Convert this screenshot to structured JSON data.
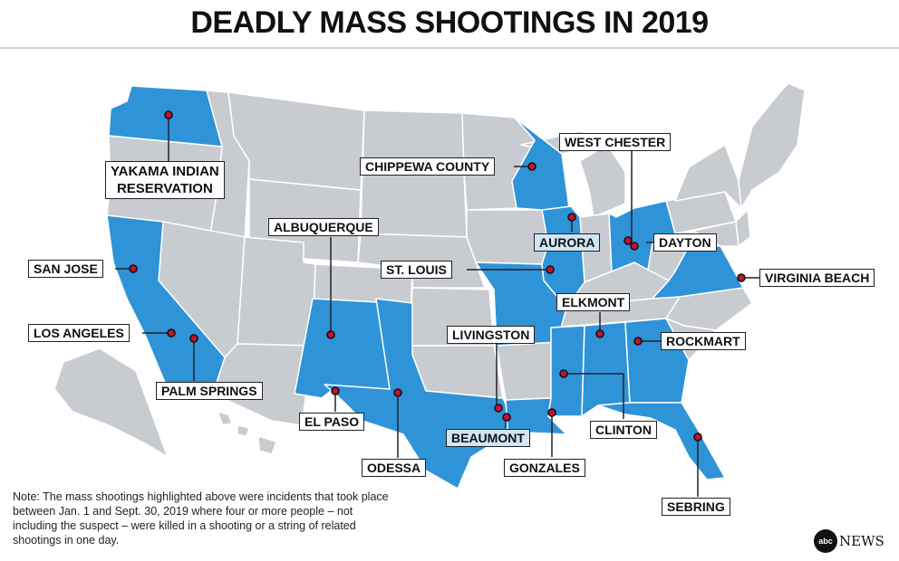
{
  "title": "DEADLY MASS SHOOTINGS IN 2019",
  "colors": {
    "highlight_state": "#2f93d8",
    "other_state": "#c8cbd0",
    "state_border": "#ffffff",
    "marker": "#c8102e",
    "label_highlight": "#cfe6f7"
  },
  "legend_states": {
    "highlighted": [
      "Washington",
      "California",
      "New Mexico",
      "Texas",
      "Missouri",
      "Wisconsin",
      "Illinois",
      "Ohio",
      "Virginia",
      "Louisiana",
      "Mississippi",
      "Alabama",
      "Georgia",
      "Florida"
    ]
  },
  "locations": {
    "yakama": "YAKAMA INDIAN\nRESERVATION",
    "chippewa": "CHIPPEWA COUNTY",
    "west_chester": "WEST CHESTER",
    "albuquerque": "ALBUQUERQUE",
    "aurora": "AURORA",
    "dayton": "DAYTON",
    "san_jose": "SAN JOSE",
    "st_louis": "ST. LOUIS",
    "virginia_beach": "VIRGINIA BEACH",
    "elkmont": "ELKMONT",
    "los_angeles": "LOS ANGELES",
    "livingston": "LIVINGSTON",
    "rockmart": "ROCKMART",
    "palm_springs": "PALM SPRINGS",
    "el_paso": "EL PASO",
    "beaumont": "BEAUMONT",
    "clinton": "CLINTON",
    "odessa": "ODESSA",
    "gonzales": "GONZALES",
    "sebring": "SEBRING"
  },
  "note": "Note: The mass shootings highlighted above were incidents that took place between Jan. 1 and Sept. 30, 2019 where four or more people – not including the suspect – were killed in a shooting or a string of related shootings in one day.",
  "logo": {
    "badge": "abc",
    "text": "NEWS"
  }
}
